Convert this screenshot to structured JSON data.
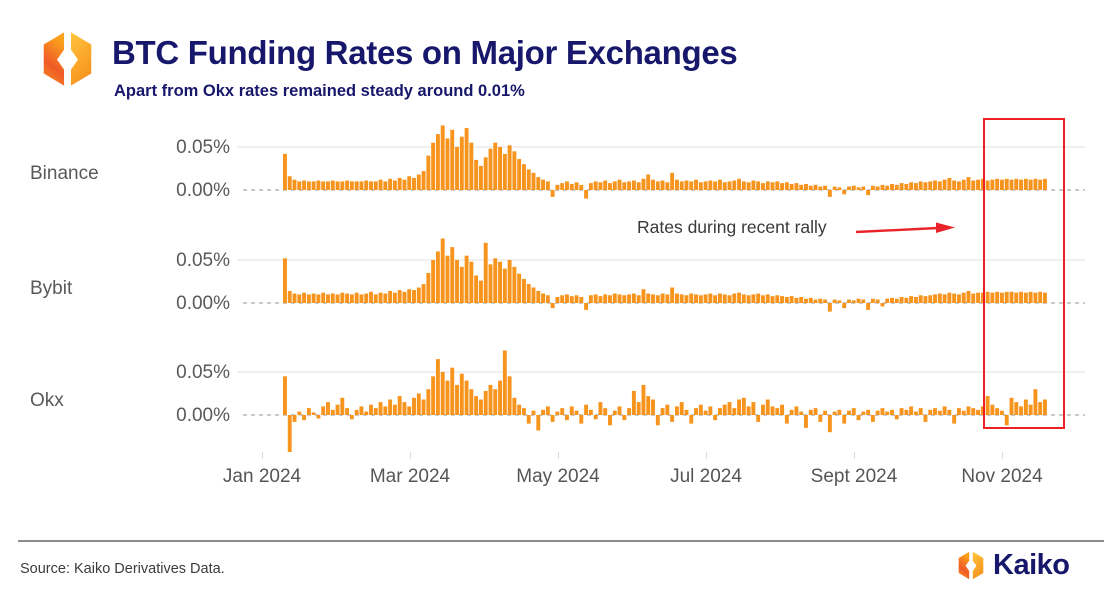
{
  "header": {
    "title": "BTC Funding Rates on Major Exchanges",
    "subtitle": "Apart from Okx rates remained steady around 0.01%"
  },
  "colors": {
    "bar": "#F7941E",
    "navy": "#17176b",
    "red": "#ED2024",
    "gridline": "#ececec",
    "zero_line": "#b9b9b9",
    "label_gray": "#595959"
  },
  "annotation": {
    "label": "Rates during recent rally"
  },
  "footer": {
    "source": "Source: Kaiko Derivatives Data.",
    "brand": "Kaiko"
  },
  "chart_data": {
    "type": "bar",
    "unit": "percent",
    "title": "BTC Funding Rates on Major Exchanges",
    "subtitle": "Apart from Okx rates remained steady around 0.01%",
    "x_tick_labels": [
      "Jan 2024",
      "Mar 2024",
      "May 2024",
      "Jul 2024",
      "Sept 2024",
      "Nov 2024"
    ],
    "y_tick_labels": [
      "0.05%",
      "0.00%"
    ],
    "y_gridline_values": [
      0.05,
      0.0
    ],
    "ylim": [
      -0.04,
      0.08
    ],
    "grid": "horizontal-only",
    "annotation": "Rates during recent rally",
    "highlight_region": {
      "label": "recent rally",
      "x_from": "late Oct 2024",
      "x_to": "mid Nov 2024"
    },
    "series": [
      {
        "name": "Binance",
        "values": [
          0.042,
          0.016,
          0.012,
          0.01,
          0.011,
          0.01,
          0.01,
          0.011,
          0.01,
          0.01,
          0.011,
          0.01,
          0.01,
          0.011,
          0.01,
          0.01,
          0.01,
          0.011,
          0.01,
          0.01,
          0.012,
          0.01,
          0.013,
          0.011,
          0.014,
          0.012,
          0.016,
          0.014,
          0.018,
          0.022,
          0.04,
          0.055,
          0.065,
          0.075,
          0.06,
          0.07,
          0.05,
          0.062,
          0.072,
          0.055,
          0.035,
          0.028,
          0.038,
          0.048,
          0.055,
          0.05,
          0.042,
          0.052,
          0.045,
          0.036,
          0.03,
          0.024,
          0.02,
          0.015,
          0.012,
          0.01,
          -0.008,
          0.006,
          0.008,
          0.01,
          0.007,
          0.009,
          0.006,
          -0.01,
          0.008,
          0.01,
          0.009,
          0.011,
          0.008,
          0.01,
          0.012,
          0.009,
          0.01,
          0.011,
          0.009,
          0.013,
          0.018,
          0.012,
          0.01,
          0.011,
          0.009,
          0.02,
          0.012,
          0.01,
          0.011,
          0.01,
          0.012,
          0.009,
          0.01,
          0.011,
          0.01,
          0.012,
          0.009,
          0.01,
          0.011,
          0.013,
          0.01,
          0.009,
          0.011,
          0.01,
          0.008,
          0.01,
          0.009,
          0.01,
          0.008,
          0.009,
          0.007,
          0.008,
          0.006,
          0.007,
          0.005,
          0.006,
          0.004,
          0.005,
          -0.008,
          0.004,
          0.003,
          -0.005,
          0.004,
          0.005,
          0.003,
          0.004,
          -0.006,
          0.005,
          0.004,
          0.006,
          0.005,
          0.007,
          0.006,
          0.008,
          0.007,
          0.009,
          0.008,
          0.01,
          0.009,
          0.01,
          0.011,
          0.01,
          0.012,
          0.014,
          0.011,
          0.01,
          0.012,
          0.015,
          0.011,
          0.012,
          0.013,
          0.011,
          0.012,
          0.013,
          0.012,
          0.013,
          0.012,
          0.013,
          0.012,
          0.013,
          0.012,
          0.013,
          0.012,
          0.013
        ]
      },
      {
        "name": "Bybit",
        "values": [
          0.052,
          0.014,
          0.011,
          0.01,
          0.012,
          0.01,
          0.011,
          0.01,
          0.012,
          0.01,
          0.011,
          0.01,
          0.012,
          0.011,
          0.01,
          0.012,
          0.01,
          0.011,
          0.013,
          0.01,
          0.012,
          0.011,
          0.014,
          0.012,
          0.015,
          0.013,
          0.016,
          0.015,
          0.018,
          0.022,
          0.035,
          0.05,
          0.06,
          0.075,
          0.055,
          0.065,
          0.05,
          0.042,
          0.055,
          0.048,
          0.032,
          0.026,
          0.07,
          0.045,
          0.052,
          0.048,
          0.04,
          0.05,
          0.042,
          0.034,
          0.028,
          0.022,
          0.018,
          0.014,
          0.011,
          0.009,
          -0.006,
          0.007,
          0.009,
          0.01,
          0.008,
          0.009,
          0.007,
          -0.008,
          0.009,
          0.01,
          0.008,
          0.01,
          0.009,
          0.011,
          0.01,
          0.009,
          0.01,
          0.011,
          0.009,
          0.016,
          0.011,
          0.01,
          0.009,
          0.011,
          0.01,
          0.018,
          0.011,
          0.01,
          0.009,
          0.011,
          0.01,
          0.009,
          0.01,
          0.011,
          0.009,
          0.011,
          0.01,
          0.009,
          0.011,
          0.012,
          0.01,
          0.009,
          0.01,
          0.011,
          0.009,
          0.01,
          0.008,
          0.009,
          0.008,
          0.007,
          0.008,
          0.006,
          0.007,
          0.005,
          0.006,
          0.004,
          0.005,
          0.004,
          -0.01,
          0.004,
          0.003,
          -0.006,
          0.004,
          0.003,
          0.005,
          0.004,
          -0.008,
          0.005,
          0.004,
          -0.004,
          0.005,
          0.006,
          0.005,
          0.007,
          0.006,
          0.008,
          0.007,
          0.009,
          0.008,
          0.009,
          0.01,
          0.011,
          0.01,
          0.012,
          0.011,
          0.01,
          0.012,
          0.014,
          0.011,
          0.012,
          0.012,
          0.013,
          0.012,
          0.013,
          0.012,
          0.013,
          0.013,
          0.012,
          0.013,
          0.012,
          0.013,
          0.012,
          0.013,
          0.012
        ]
      },
      {
        "name": "Okx",
        "values": [
          0.045,
          -0.07,
          -0.008,
          0.004,
          -0.006,
          0.008,
          0.003,
          -0.004,
          0.01,
          0.015,
          0.006,
          0.012,
          0.02,
          0.008,
          -0.005,
          0.006,
          0.01,
          0.004,
          0.012,
          0.008,
          0.015,
          0.01,
          0.018,
          0.012,
          0.022,
          0.015,
          0.01,
          0.02,
          0.025,
          0.018,
          0.03,
          0.045,
          0.065,
          0.05,
          0.04,
          0.055,
          0.035,
          0.048,
          0.04,
          0.03,
          0.022,
          0.018,
          0.028,
          0.035,
          0.03,
          0.04,
          0.075,
          0.045,
          0.02,
          0.012,
          0.008,
          -0.01,
          0.005,
          -0.018,
          0.006,
          0.01,
          -0.008,
          0.004,
          0.008,
          -0.006,
          0.01,
          0.005,
          -0.01,
          0.012,
          0.006,
          -0.005,
          0.015,
          0.008,
          -0.012,
          0.005,
          0.01,
          -0.006,
          0.008,
          0.028,
          0.015,
          0.035,
          0.022,
          0.018,
          -0.012,
          0.008,
          0.012,
          -0.008,
          0.01,
          0.015,
          0.006,
          -0.01,
          0.008,
          0.012,
          0.005,
          0.01,
          -0.006,
          0.008,
          0.012,
          0.015,
          0.008,
          0.018,
          0.02,
          0.01,
          0.015,
          -0.008,
          0.012,
          0.018,
          0.01,
          0.008,
          0.012,
          -0.01,
          0.006,
          0.01,
          0.004,
          -0.015,
          0.006,
          0.008,
          -0.008,
          0.005,
          -0.02,
          0.004,
          0.006,
          -0.01,
          0.005,
          0.008,
          -0.006,
          0.004,
          0.006,
          -0.008,
          0.005,
          0.008,
          0.004,
          0.006,
          -0.005,
          0.008,
          0.006,
          0.01,
          0.004,
          0.008,
          -0.008,
          0.006,
          0.008,
          0.005,
          0.01,
          0.006,
          -0.01,
          0.008,
          0.005,
          0.01,
          0.008,
          0.006,
          0.01,
          0.022,
          0.012,
          0.008,
          0.005,
          -0.012,
          0.02,
          0.015,
          0.01,
          0.018,
          0.012,
          0.03,
          0.015,
          0.018
        ]
      }
    ]
  }
}
